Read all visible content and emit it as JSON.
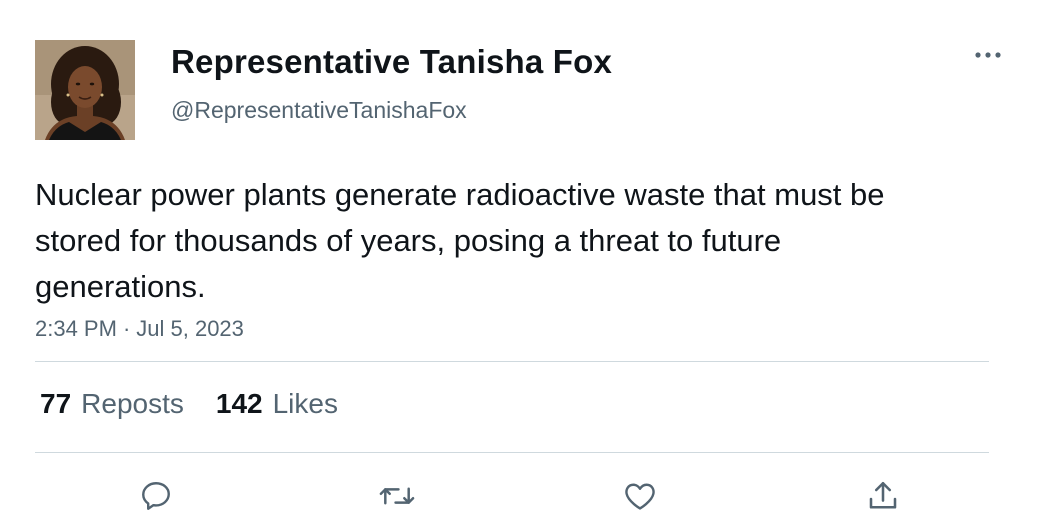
{
  "author": {
    "display_name": "Representative Tanisha Fox",
    "handle": "@RepresentativeTanishaFox",
    "avatar_icon": "profile-photo"
  },
  "tweet": {
    "text": "Nuclear power plants generate radioactive waste that must be stored for thousands of years, posing a threat to future generations.",
    "time": "2:34 PM",
    "separator": "·",
    "date": "Jul 5, 2023"
  },
  "stats": {
    "reposts_count": "77",
    "reposts_label": "Reposts",
    "likes_count": "142",
    "likes_label": "Likes"
  },
  "actions": {
    "reply_icon": "reply-icon",
    "repost_icon": "repost-icon",
    "like_icon": "heart-icon",
    "share_icon": "share-icon",
    "more_icon": "more-icon"
  },
  "colors": {
    "text_primary": "#0f1419",
    "text_secondary": "#536471",
    "divider": "#cfd9de",
    "background": "#ffffff"
  }
}
